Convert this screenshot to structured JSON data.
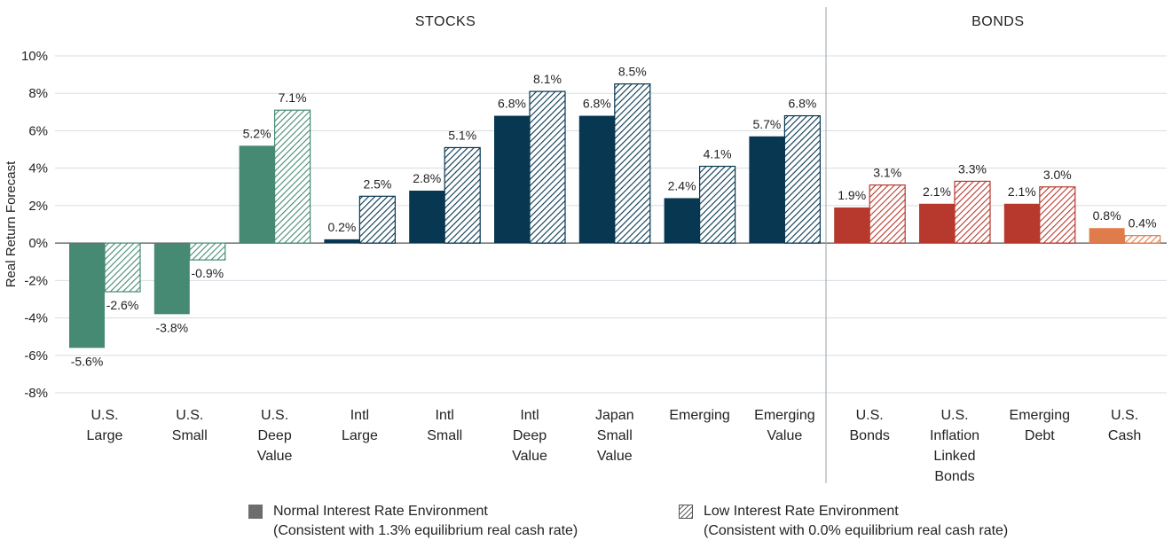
{
  "chart_data": {
    "type": "bar",
    "ylabel": "Real Return Forecast",
    "ylim": [
      -8,
      10
    ],
    "yticks": [
      10,
      8,
      6,
      4,
      2,
      0,
      -2,
      -4,
      -6,
      -8
    ],
    "ytick_labels": [
      "10%",
      "8%",
      "6%",
      "4%",
      "2%",
      "0%",
      "-2%",
      "-4%",
      "-6%",
      "-8%"
    ],
    "grid": true,
    "sections": [
      {
        "label": "STOCKS",
        "categories": [
          0,
          8
        ]
      },
      {
        "label": "BONDS",
        "categories": [
          9,
          12
        ]
      }
    ],
    "categories": [
      "U.S.\nLarge",
      "U.S.\nSmall",
      "U.S.\nDeep\nValue",
      "Intl\nLarge",
      "Intl\nSmall",
      "Intl\nDeep\nValue",
      "Japan\nSmall\nValue",
      "Emerging",
      "Emerging\nValue",
      "U.S.\nBonds",
      "U.S.\nInflation\nLinked\nBonds",
      "Emerging\nDebt",
      "U.S.\nCash"
    ],
    "category_colors": [
      "#468a74",
      "#468a74",
      "#468a74",
      "#073751",
      "#073751",
      "#073751",
      "#073751",
      "#073751",
      "#073751",
      "#b7392e",
      "#b7392e",
      "#b7392e",
      "#e07c4c"
    ],
    "series": [
      {
        "name": "Normal Interest Rate Environment",
        "style": "solid",
        "values": [
          -5.6,
          -3.8,
          5.2,
          0.2,
          2.8,
          6.8,
          6.8,
          2.4,
          5.7,
          1.9,
          2.1,
          2.1,
          0.8
        ],
        "value_labels": [
          "-5.6%",
          "-3.8%",
          "5.2%",
          "0.2%",
          "2.8%",
          "6.8%",
          "6.8%",
          "2.4%",
          "5.7%",
          "1.9%",
          "2.1%",
          "2.1%",
          "0.8%"
        ]
      },
      {
        "name": "Low Interest Rate Environment",
        "style": "hatched",
        "values": [
          -2.6,
          -0.9,
          7.1,
          2.5,
          5.1,
          8.1,
          8.5,
          4.1,
          6.8,
          3.1,
          3.3,
          3.0,
          0.4
        ],
        "value_labels": [
          "-2.6%",
          "-0.9%",
          "7.1%",
          "2.5%",
          "5.1%",
          "8.1%",
          "8.5%",
          "4.1%",
          "6.8%",
          "3.1%",
          "3.3%",
          "3.0%",
          "0.4%"
        ]
      }
    ]
  },
  "legend": {
    "normal": {
      "line1": "Normal Interest Rate Environment",
      "line2": "(Consistent with 1.3% equilibrium real cash rate)",
      "color": "#6d6d6d"
    },
    "low": {
      "line1": "Low Interest Rate Environment",
      "line2": "(Consistent with 0.0% equilibrium real cash rate)",
      "color": "#6d6d6d"
    }
  }
}
